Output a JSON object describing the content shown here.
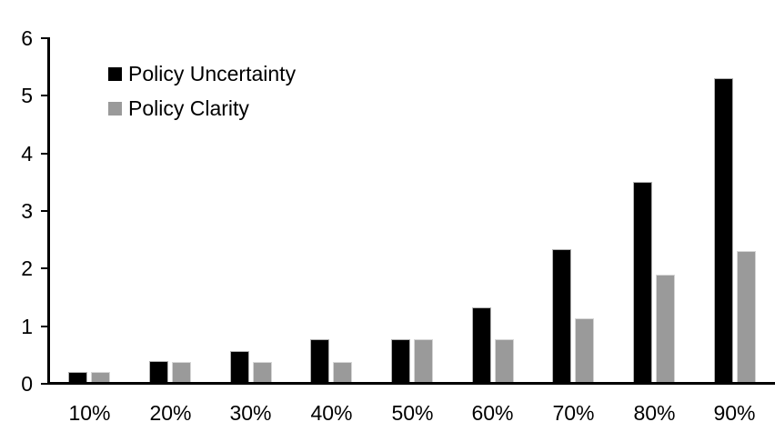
{
  "chart_data": {
    "type": "bar",
    "title": "",
    "xlabel": "",
    "ylabel": "",
    "categories": [
      "10%",
      "20%",
      "30%",
      "40%",
      "50%",
      "60%",
      "70%",
      "80%",
      "90%"
    ],
    "series": [
      {
        "name": "Policy Uncertainty",
        "color": "#000000",
        "values": [
          0.2,
          0.4,
          0.57,
          0.77,
          0.78,
          1.33,
          2.33,
          3.5,
          5.3
        ]
      },
      {
        "name": "Policy Clarity",
        "color": "#9A9A9A",
        "values": [
          0.2,
          0.38,
          0.38,
          0.38,
          0.77,
          0.77,
          1.13,
          1.9,
          2.3
        ]
      }
    ],
    "ylim": [
      0,
      6
    ],
    "y_ticks": [
      "0",
      "1",
      "2",
      "3",
      "4",
      "5",
      "6"
    ],
    "grid": false,
    "legend_position": "top-left-inside",
    "background_color": "#ffffff",
    "axis_color": "#000000"
  }
}
